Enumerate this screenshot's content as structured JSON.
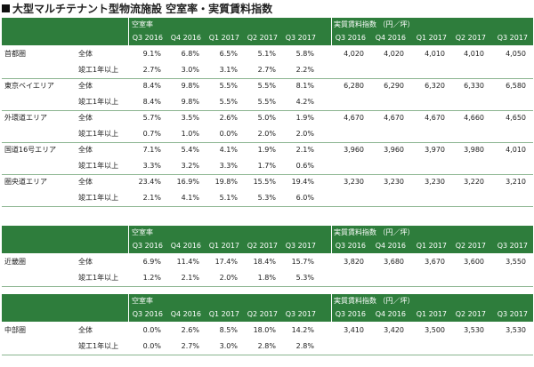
{
  "title": "大型マルチテナント型物流施設 空室率・実質賃料指数",
  "header": {
    "vacancy_label": "空室率",
    "rent_label": "実質賃料指数 （円／坪）",
    "quarters": [
      "Q3 2016",
      "Q4 2016",
      "Q1 2017",
      "Q2 2017",
      "Q3 2017"
    ]
  },
  "sub_labels": {
    "all": "全体",
    "built1y": "竣工1年以上"
  },
  "tables": [
    {
      "regions": [
        {
          "name": "首都圏",
          "all": {
            "vacancy": [
              "9.1%",
              "6.8%",
              "6.5%",
              "5.1%",
              "5.8%"
            ],
            "rent": [
              "4,020",
              "4,020",
              "4,010",
              "4,010",
              "4,050"
            ]
          },
          "built1y": {
            "vacancy": [
              "2.7%",
              "3.0%",
              "3.1%",
              "2.7%",
              "2.2%"
            ]
          }
        },
        {
          "name": "東京ベイエリア",
          "all": {
            "vacancy": [
              "8.4%",
              "9.8%",
              "5.5%",
              "5.5%",
              "8.1%"
            ],
            "rent": [
              "6,280",
              "6,290",
              "6,320",
              "6,330",
              "6,580"
            ]
          },
          "built1y": {
            "vacancy": [
              "8.4%",
              "9.8%",
              "5.5%",
              "5.5%",
              "4.2%"
            ]
          }
        },
        {
          "name": "外環道エリア",
          "all": {
            "vacancy": [
              "5.7%",
              "3.5%",
              "2.6%",
              "5.0%",
              "1.9%"
            ],
            "rent": [
              "4,670",
              "4,670",
              "4,670",
              "4,660",
              "4,650"
            ]
          },
          "built1y": {
            "vacancy": [
              "0.7%",
              "1.0%",
              "0.0%",
              "2.0%",
              "2.0%"
            ]
          }
        },
        {
          "name": "国道16号エリア",
          "all": {
            "vacancy": [
              "7.1%",
              "5.4%",
              "4.1%",
              "1.9%",
              "2.1%"
            ],
            "rent": [
              "3,960",
              "3,960",
              "3,970",
              "3,980",
              "4,010"
            ]
          },
          "built1y": {
            "vacancy": [
              "3.3%",
              "3.2%",
              "3.3%",
              "1.7%",
              "0.6%"
            ]
          }
        },
        {
          "name": "圏央道エリア",
          "all": {
            "vacancy": [
              "23.4%",
              "16.9%",
              "19.8%",
              "15.5%",
              "19.4%"
            ],
            "rent": [
              "3,230",
              "3,230",
              "3,230",
              "3,220",
              "3,210"
            ]
          },
          "built1y": {
            "vacancy": [
              "2.1%",
              "4.1%",
              "5.1%",
              "5.3%",
              "6.0%"
            ]
          }
        }
      ]
    },
    {
      "regions": [
        {
          "name": "近畿圏",
          "all": {
            "vacancy": [
              "6.9%",
              "11.4%",
              "17.4%",
              "18.4%",
              "15.7%"
            ],
            "rent": [
              "3,820",
              "3,680",
              "3,670",
              "3,600",
              "3,550"
            ]
          },
          "built1y": {
            "vacancy": [
              "1.2%",
              "2.1%",
              "2.0%",
              "1.8%",
              "5.3%"
            ]
          }
        }
      ]
    },
    {
      "regions": [
        {
          "name": "中部圏",
          "all": {
            "vacancy": [
              "0.0%",
              "2.6%",
              "8.5%",
              "18.0%",
              "14.2%"
            ],
            "rent": [
              "3,410",
              "3,420",
              "3,500",
              "3,530",
              "3,530"
            ]
          },
          "built1y": {
            "vacancy": [
              "0.0%",
              "2.7%",
              "3.0%",
              "2.8%",
              "2.8%"
            ]
          }
        }
      ]
    }
  ],
  "colors": {
    "header_green": "#2e7d3c",
    "separator": "#8ab48f"
  }
}
